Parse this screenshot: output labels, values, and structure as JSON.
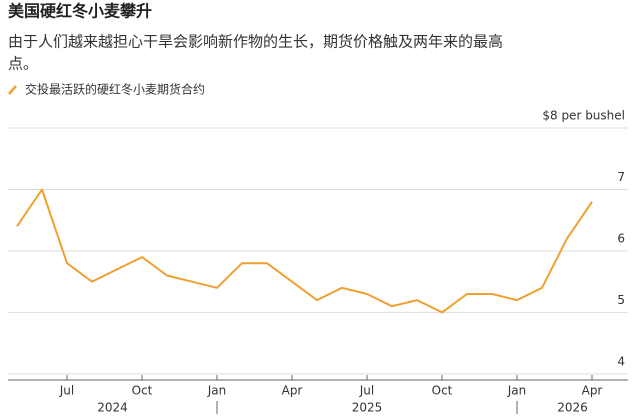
{
  "chart_data": {
    "type": "line",
    "title": "美国硬红冬小麦攀升",
    "subtitle": [
      "由于人们越来越担心干旱会影响新作物的生长，期货价格触及两年来的最高",
      "点。"
    ],
    "x": [
      "2024-05",
      "2024-06",
      "2024-07",
      "2024-08",
      "2024-09",
      "2024-10",
      "2024-11",
      "2024-12",
      "2025-01",
      "2025-02",
      "2025-03",
      "2025-04",
      "2025-05",
      "2025-06",
      "2025-07",
      "2025-08",
      "2025-09",
      "2025-10",
      "2025-11",
      "2025-12",
      "2026-01",
      "2026-02",
      "2026-03",
      "2026-04"
    ],
    "series": [
      {
        "name": "交投最活跃的硬红冬小麦期货合约",
        "color": "#f0a030",
        "values": [
          6.4,
          7.0,
          5.8,
          5.5,
          5.7,
          5.9,
          5.6,
          5.5,
          5.4,
          5.8,
          5.8,
          5.5,
          5.2,
          5.4,
          5.3,
          5.1,
          5.2,
          5.0,
          5.3,
          5.3,
          5.2,
          5.4,
          6.2,
          6.8
        ]
      }
    ],
    "xlim": [
      "2024-05",
      "2026-05"
    ],
    "xticks": [
      {
        "value": "2024-07",
        "label": "Jul"
      },
      {
        "value": "2024-10",
        "label": "Oct"
      },
      {
        "value": "2025-01",
        "label": "Jan"
      },
      {
        "value": "2025-04",
        "label": "Apr"
      },
      {
        "value": "2025-07",
        "label": "Jul"
      },
      {
        "value": "2025-10",
        "label": "Oct"
      },
      {
        "value": "2026-01",
        "label": "Jan"
      },
      {
        "value": "2026-04",
        "label": "Apr"
      }
    ],
    "years": [
      "2024",
      "2025",
      "2026"
    ],
    "ylim": [
      3.9,
      8
    ],
    "yticks": [
      {
        "value": 8,
        "label": "$8 per bushel"
      },
      7,
      6,
      5,
      4
    ],
    "grid": true
  }
}
